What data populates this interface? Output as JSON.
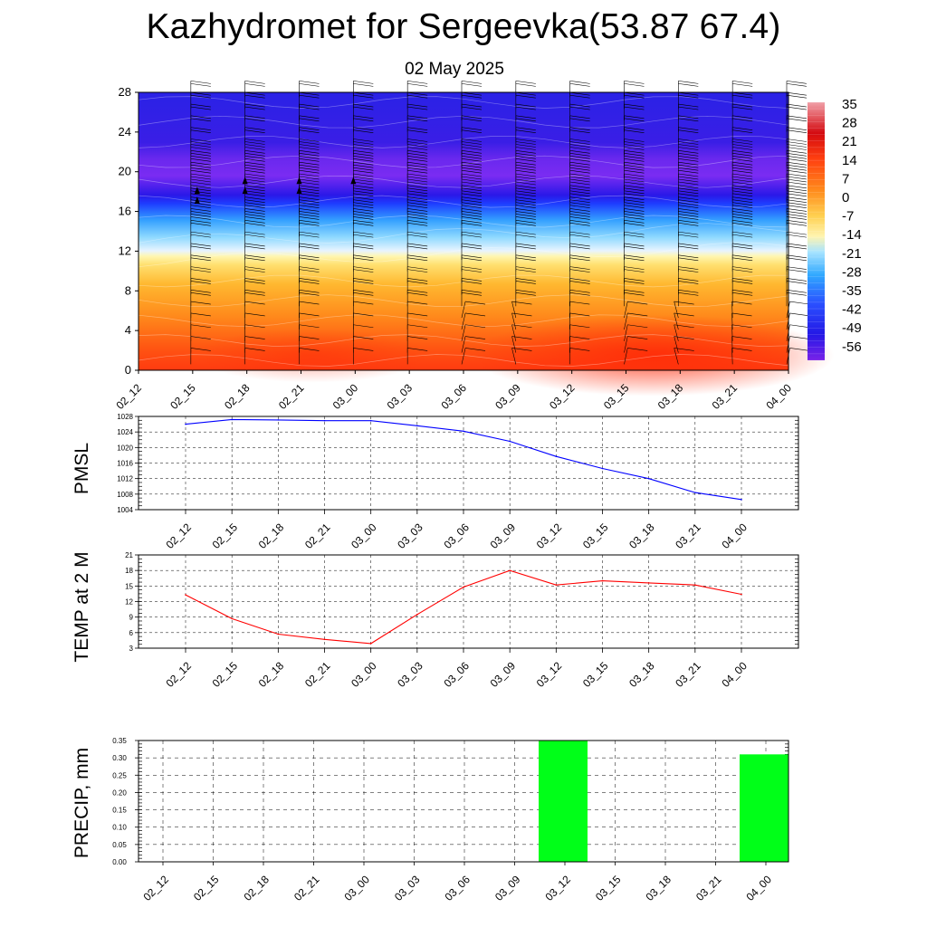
{
  "title": "Kazhydromet for Sergeevka(53.87 67.4)",
  "subtitle": "02 May 2025",
  "chart_data": [
    {
      "type": "heatmap",
      "name": "height-time-section",
      "x_ticks": [
        "02_12",
        "02_15",
        "02_18",
        "02_21",
        "03_00",
        "03_03",
        "03_06",
        "03_09",
        "03_12",
        "03_15",
        "03_18",
        "03_21",
        "04_00"
      ],
      "y_ticks": [
        "0",
        "4",
        "8",
        "12",
        "16",
        "20",
        "24",
        "28"
      ],
      "ylim": [
        0,
        28
      ],
      "colorbar_labels": [
        "35",
        "28",
        "21",
        "14",
        "7",
        "0",
        "-7",
        "-14",
        "-21",
        "-28",
        "-35",
        "-42",
        "-49",
        "-56"
      ],
      "colors": {
        "low_level_warm": "#ff3a10",
        "mid_warm": "#ff9a1e",
        "near_zero": "#fff0a0",
        "cold_aloft": "#2a58ff",
        "coldest": "#7a28f0",
        "upper": "#2a20e8"
      },
      "wind_barbs": true
    },
    {
      "type": "line",
      "name": "pmsl",
      "ylabel": "PMSL",
      "categories": [
        "02_12",
        "02_15",
        "02_18",
        "02_21",
        "03_00",
        "03_03",
        "03_06",
        "03_09",
        "03_12",
        "03_15",
        "03_18",
        "03_21",
        "04_00"
      ],
      "y_ticks": [
        "1004",
        "1008",
        "1012",
        "1016",
        "1020",
        "1024",
        "1028"
      ],
      "ylim": [
        1004,
        1028
      ],
      "values": [
        1026.0,
        1027.2,
        1027.1,
        1026.9,
        1026.9,
        1025.6,
        1024.2,
        1021.6,
        1017.7,
        1014.6,
        1012.0,
        1008.4,
        1006.6
      ],
      "color": "#0000ff",
      "grid": true
    },
    {
      "type": "line",
      "name": "temp-2m",
      "ylabel": "TEMP at 2 M",
      "categories": [
        "02_12",
        "02_15",
        "02_18",
        "02_21",
        "03_00",
        "03_03",
        "03_06",
        "03_09",
        "03_12",
        "03_15",
        "03_18",
        "03_21",
        "04_00"
      ],
      "y_ticks": [
        "3",
        "6",
        "9",
        "12",
        "15",
        "18",
        "21"
      ],
      "ylim": [
        3,
        21
      ],
      "values": [
        13.3,
        8.7,
        5.7,
        4.7,
        3.9,
        9.5,
        14.8,
        18.0,
        15.2,
        16.0,
        15.6,
        15.2,
        13.4
      ],
      "color": "#ff0000",
      "grid": true
    },
    {
      "type": "bar",
      "name": "precip",
      "ylabel": "PRECIP, mm",
      "categories": [
        "02_12",
        "02_15",
        "02_18",
        "02_21",
        "03_00",
        "03_03",
        "03_06",
        "03_09",
        "03_12",
        "03_15",
        "03_18",
        "03_21",
        "04_00"
      ],
      "y_ticks": [
        "0.00",
        "0.05",
        "0.10",
        "0.15",
        "0.20",
        "0.25",
        "0.30",
        "0.35"
      ],
      "ylim": [
        0,
        0.35
      ],
      "values": [
        0,
        0,
        0,
        0,
        0,
        0,
        0,
        0,
        0.35,
        0,
        0,
        0,
        0.31
      ],
      "color": "#00ff18",
      "grid": true
    }
  ]
}
